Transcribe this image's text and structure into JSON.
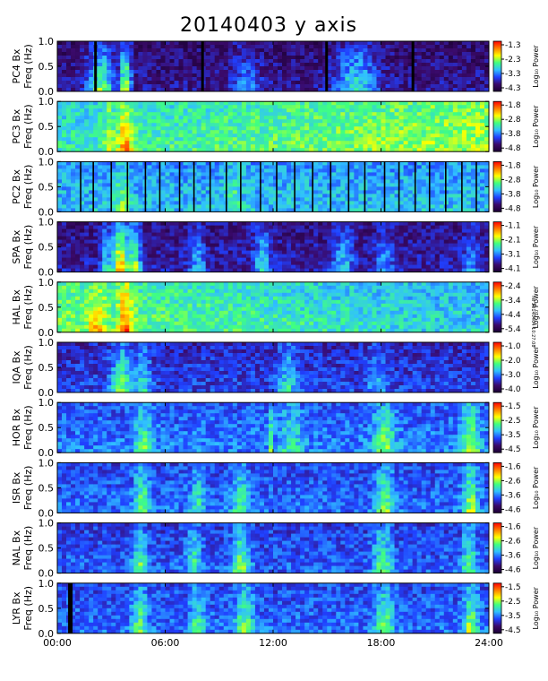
{
  "chart_data": {
    "type": "heatmap",
    "title": "20140403 y axis",
    "x_ticks": [
      "00:00",
      "06:00",
      "12:00",
      "18:00",
      "24:00"
    ],
    "xlim": [
      0,
      24
    ],
    "y_ticks": [
      "0.0",
      "0.5",
      "1.0"
    ],
    "ylim": [
      0,
      1.0
    ],
    "colorbar_label": "Log₁₀ Power",
    "colormap": [
      "#1a0033",
      "#3a0a6a",
      "#2040ff",
      "#30c0ff",
      "#40ff80",
      "#ffff00",
      "#ff8000",
      "#ff0000"
    ],
    "panels": [
      {
        "station": "PC4 Bx",
        "ylabel": "Freq (Hz)",
        "cb_ticks": [
          "-1.3",
          "-2.3",
          "-3.3",
          "-4.3"
        ],
        "base": 0.12,
        "vlines": [],
        "dark_bands": [
          [
            2.05,
            2.2
          ],
          [
            8.0,
            8.15
          ],
          [
            14.9,
            15.05
          ],
          [
            19.7,
            19.85
          ]
        ],
        "events": [
          [
            2.4,
            0.7,
            0.45
          ],
          [
            3.8,
            0.3,
            0.55
          ],
          [
            16.6,
            1.2,
            0.35
          ],
          [
            10.5,
            0.8,
            0.2
          ]
        ]
      },
      {
        "station": "PC3 Bx",
        "ylabel": "Freq (Hz)",
        "cb_ticks": [
          "-1.8",
          "-2.8",
          "-3.8",
          "-4.8"
        ],
        "base": 0.45,
        "vlines": [],
        "dark_bands": [],
        "trend": 0.25,
        "events": [
          [
            3.8,
            0.4,
            0.35
          ],
          [
            2.9,
            0.3,
            0.2
          ]
        ]
      },
      {
        "station": "PC2 Bx",
        "ylabel": "Freq (Hz)",
        "cb_ticks": [
          "-1.8",
          "-2.8",
          "-3.8",
          "-4.8"
        ],
        "base": 0.38,
        "vlines": [
          1.3,
          2.0,
          3.0,
          3.9,
          4.9,
          5.7,
          6.8,
          7.6,
          8.5,
          9.4,
          10.2,
          11.3,
          12.2,
          13.2,
          14.2,
          15.2,
          16.2,
          17.1,
          18.2,
          19.0,
          19.9,
          20.7,
          21.6,
          22.5,
          23.3
        ],
        "dark_bands": [],
        "events": [
          [
            3.6,
            0.4,
            0.2
          ],
          [
            9.8,
            0.5,
            0.15
          ]
        ]
      },
      {
        "station": "SPA Bx",
        "ylabel": "Freq (Hz)",
        "cb_ticks": [
          "-1.1",
          "-2.1",
          "-3.1",
          "-4.1"
        ],
        "base": 0.15,
        "vlines": [],
        "dark_bands": [],
        "events": [
          [
            3.5,
            0.45,
            0.65
          ],
          [
            4.3,
            0.35,
            0.45
          ],
          [
            2.7,
            0.25,
            0.3
          ],
          [
            7.8,
            0.4,
            0.25
          ],
          [
            11.4,
            0.5,
            0.3
          ],
          [
            15.9,
            0.6,
            0.25
          ],
          [
            18.2,
            0.5,
            0.2
          ],
          [
            23.0,
            0.4,
            0.2
          ]
        ]
      },
      {
        "station": "HAL Bx",
        "ylabel": "Freq (Hz)",
        "cb_ticks": [
          "-2.4",
          "-3.4",
          "-4.4",
          "-5.4"
        ],
        "base": 0.55,
        "vlines": [],
        "dark_bands": [],
        "trend": -0.25,
        "events": [
          [
            3.8,
            0.4,
            0.35
          ],
          [
            2.2,
            0.5,
            0.2
          ]
        ]
      },
      {
        "station": "IQA Bx",
        "ylabel": "Freq (Hz)",
        "cb_ticks": [
          "-1.0",
          "-2.0",
          "-3.0",
          "-4.0"
        ],
        "base": 0.22,
        "vlines": [],
        "dark_bands": [],
        "events": [
          [
            3.6,
            0.6,
            0.35
          ],
          [
            4.8,
            0.4,
            0.25
          ],
          [
            12.8,
            0.5,
            0.25
          ],
          [
            17.8,
            0.5,
            0.15
          ]
        ]
      },
      {
        "station": "HOR Bx",
        "ylabel": "Freq (Hz)",
        "cb_ticks": [
          "-1.5",
          "-2.5",
          "-3.5",
          "-4.5"
        ],
        "base": 0.3,
        "vlines": [],
        "dark_bands": [],
        "events": [
          [
            4.8,
            0.5,
            0.25
          ],
          [
            11.8,
            0.1,
            0.4
          ],
          [
            13.0,
            0.6,
            0.2
          ],
          [
            18.2,
            0.6,
            0.3
          ],
          [
            23.0,
            0.5,
            0.35
          ]
        ]
      },
      {
        "station": "ISR Bx",
        "ylabel": "Freq (Hz)",
        "cb_ticks": [
          "-1.6",
          "-2.6",
          "-3.6",
          "-4.6"
        ],
        "base": 0.28,
        "vlines": [],
        "dark_bands": [],
        "events": [
          [
            4.7,
            0.4,
            0.3
          ],
          [
            7.8,
            0.4,
            0.2
          ],
          [
            10.2,
            0.5,
            0.25
          ],
          [
            18.2,
            0.5,
            0.3
          ],
          [
            23.0,
            0.4,
            0.35
          ]
        ]
      },
      {
        "station": "NAL Bx",
        "ylabel": "Freq (Hz)",
        "cb_ticks": [
          "-1.6",
          "-2.6",
          "-3.6",
          "-4.6"
        ],
        "base": 0.26,
        "vlines": [],
        "dark_bands": [],
        "events": [
          [
            4.6,
            0.4,
            0.3
          ],
          [
            7.6,
            0.4,
            0.25
          ],
          [
            10.2,
            0.5,
            0.35
          ],
          [
            18.1,
            0.5,
            0.3
          ],
          [
            22.9,
            0.4,
            0.3
          ]
        ]
      },
      {
        "station": "LYR Bx",
        "ylabel": "Freq (Hz)",
        "cb_ticks": [
          "-1.5",
          "-2.5",
          "-3.5",
          "-4.5"
        ],
        "base": 0.28,
        "vlines": [],
        "dark_bands": [
          [
            0.6,
            0.85
          ]
        ],
        "events": [
          [
            4.6,
            0.4,
            0.3
          ],
          [
            7.8,
            0.4,
            0.25
          ],
          [
            10.4,
            0.5,
            0.3
          ],
          [
            18.2,
            0.5,
            0.3
          ],
          [
            23.0,
            0.4,
            0.35
          ]
        ]
      }
    ]
  },
  "annotations": {
    "side_stamp": "rel 20140404 10:27:08"
  }
}
